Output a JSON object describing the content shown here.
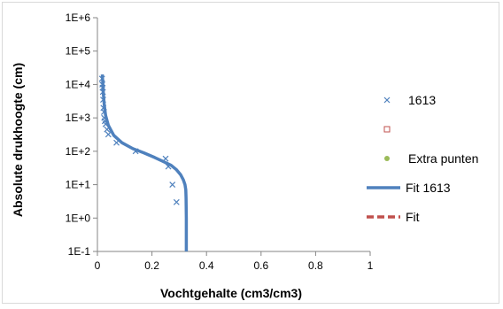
{
  "chart_data": {
    "type": "scatter",
    "xlabel": "Vochtgehalte (cm3/cm3)",
    "ylabel": "Absolute drukhoogte (cm)",
    "xlim": [
      0,
      1
    ],
    "ylim": [
      0.1,
      1000000
    ],
    "yscale": "log",
    "x_ticks": [
      {
        "value": 0,
        "label": "0"
      },
      {
        "value": 0.2,
        "label": "0.2"
      },
      {
        "value": 0.4,
        "label": "0.4"
      },
      {
        "value": 0.6,
        "label": "0.6"
      },
      {
        "value": 0.8,
        "label": "0.8"
      },
      {
        "value": 1,
        "label": "1"
      }
    ],
    "y_ticks": [
      {
        "value": 0.1,
        "label": "1E-1"
      },
      {
        "value": 1,
        "label": "1E+0"
      },
      {
        "value": 10,
        "label": "1E+1"
      },
      {
        "value": 100,
        "label": "1E+2"
      },
      {
        "value": 1000,
        "label": "1E+3"
      },
      {
        "value": 10000,
        "label": "1E+4"
      },
      {
        "value": 100000,
        "label": "1E+5"
      },
      {
        "value": 1000000,
        "label": "1E+6"
      }
    ],
    "grid": false,
    "legend_position": "right",
    "series": [
      {
        "name": "1613",
        "kind": "scatter",
        "marker": "x",
        "color": "#4f81bd",
        "points": [
          [
            0.017,
            15000
          ],
          [
            0.018,
            10000
          ],
          [
            0.019,
            8000
          ],
          [
            0.02,
            6000
          ],
          [
            0.021,
            3500
          ],
          [
            0.022,
            2000
          ],
          [
            0.024,
            1500
          ],
          [
            0.025,
            1000
          ],
          [
            0.027,
            800
          ],
          [
            0.03,
            650
          ],
          [
            0.035,
            450
          ],
          [
            0.04,
            320
          ],
          [
            0.07,
            180
          ],
          [
            0.14,
            100
          ],
          [
            0.25,
            60
          ],
          [
            0.26,
            35
          ],
          [
            0.275,
            10
          ],
          [
            0.29,
            3
          ]
        ]
      },
      {
        "name": "",
        "kind": "scatter",
        "marker": "square",
        "color": "#c0504d",
        "points": []
      },
      {
        "name": "Extra punten",
        "kind": "scatter",
        "marker": "circle",
        "color": "#9bbb59",
        "points": []
      },
      {
        "name": "Fit 1613",
        "kind": "line",
        "color": "#4f81bd",
        "points": [
          [
            0.018,
            20000
          ],
          [
            0.02,
            10000
          ],
          [
            0.022,
            5000
          ],
          [
            0.025,
            2500
          ],
          [
            0.03,
            1200
          ],
          [
            0.04,
            600
          ],
          [
            0.06,
            300
          ],
          [
            0.09,
            180
          ],
          [
            0.13,
            120
          ],
          [
            0.17,
            90
          ],
          [
            0.21,
            65
          ],
          [
            0.24,
            50
          ],
          [
            0.27,
            38
          ],
          [
            0.29,
            28
          ],
          [
            0.305,
            20
          ],
          [
            0.315,
            14
          ],
          [
            0.321,
            10
          ],
          [
            0.324,
            7
          ],
          [
            0.325,
            4
          ],
          [
            0.326,
            1
          ],
          [
            0.326,
            0.1
          ]
        ]
      },
      {
        "name": "Fit",
        "kind": "line",
        "dash": true,
        "color": "#c0504d",
        "points": []
      }
    ]
  }
}
